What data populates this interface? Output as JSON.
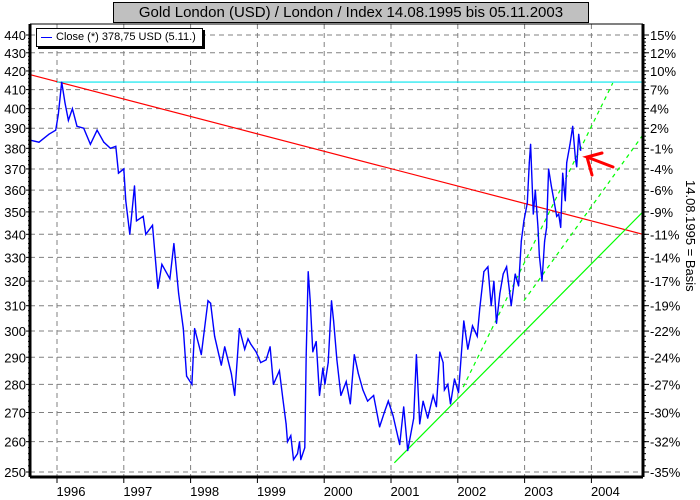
{
  "title": "Gold London (USD) / London / Index 14.08.1995 bis 05.11.2003",
  "legend": {
    "label": "Close (*) 378,75 USD (5.11.)"
  },
  "colors": {
    "series": "#0000ff",
    "resistance": "#ff0000",
    "support": "#00ff00",
    "reference": "#00e5ee",
    "grid": "#808080",
    "title_bg": "#c0c0c0"
  },
  "chart_data": {
    "type": "line",
    "title": "Gold London (USD) / London / Index 14.08.1995 bis 05.11.2003",
    "y_scale": "log",
    "ylim": [
      250,
      440
    ],
    "xlim": [
      1995.6,
      2004.77
    ],
    "grid": true,
    "legend_placement": "top-left",
    "y_ticks": [
      "440",
      "430",
      "420",
      "410",
      "400",
      "390",
      "380",
      "370",
      "360",
      "350",
      "340",
      "330",
      "320",
      "310",
      "300",
      "290",
      "280",
      "270",
      "260",
      "250"
    ],
    "y_tick_values": [
      440,
      430,
      420,
      410,
      400,
      390,
      380,
      370,
      360,
      350,
      340,
      330,
      320,
      310,
      300,
      290,
      280,
      270,
      260,
      250
    ],
    "y2_ticks": [
      "15%",
      "12%",
      "10%",
      "7%",
      "4%",
      "2%",
      "-1%",
      "-4%",
      "-6%",
      "-9%",
      "-11%",
      "-14%",
      "-17%",
      "-19%",
      "-22%",
      "-24%",
      "-27%",
      "-30%",
      "-32%",
      "-35%"
    ],
    "y2_label": "14.08.1995 = Basis",
    "x_ticks": [
      "1996",
      "1997",
      "1998",
      "1999",
      "2000",
      "2001",
      "2002",
      "2003",
      "2004"
    ],
    "x_tick_values": [
      1996,
      1997,
      1998,
      1999,
      2000,
      2001,
      2002,
      2003,
      2004
    ],
    "series": [
      {
        "name": "Close (*) 378,75 USD (5.11.)",
        "points": [
          [
            1995.6,
            384
          ],
          [
            1995.73,
            383
          ],
          [
            1995.88,
            387
          ],
          [
            1995.98,
            389
          ],
          [
            1996.02,
            397
          ],
          [
            1996.07,
            414
          ],
          [
            1996.12,
            403
          ],
          [
            1996.17,
            394
          ],
          [
            1996.23,
            400
          ],
          [
            1996.3,
            391
          ],
          [
            1996.4,
            390
          ],
          [
            1996.5,
            382
          ],
          [
            1996.6,
            389
          ],
          [
            1996.7,
            383
          ],
          [
            1996.8,
            380
          ],
          [
            1996.88,
            381
          ],
          [
            1996.92,
            368
          ],
          [
            1997.0,
            370
          ],
          [
            1997.03,
            355
          ],
          [
            1997.09,
            340
          ],
          [
            1997.16,
            362
          ],
          [
            1997.19,
            346
          ],
          [
            1997.29,
            348
          ],
          [
            1997.33,
            340
          ],
          [
            1997.43,
            344
          ],
          [
            1997.51,
            317
          ],
          [
            1997.57,
            327
          ],
          [
            1997.69,
            321
          ],
          [
            1997.75,
            336
          ],
          [
            1997.82,
            315
          ],
          [
            1997.89,
            301
          ],
          [
            1997.94,
            283
          ],
          [
            1998.02,
            280
          ],
          [
            1998.06,
            301
          ],
          [
            1998.16,
            291
          ],
          [
            1998.26,
            312
          ],
          [
            1998.3,
            311
          ],
          [
            1998.36,
            298
          ],
          [
            1998.46,
            287
          ],
          [
            1998.51,
            294
          ],
          [
            1998.61,
            284
          ],
          [
            1998.66,
            276
          ],
          [
            1998.73,
            301
          ],
          [
            1998.81,
            293
          ],
          [
            1998.86,
            297
          ],
          [
            1998.9,
            295
          ],
          [
            1998.98,
            292
          ],
          [
            1999.05,
            288
          ],
          [
            1999.13,
            289
          ],
          [
            1999.19,
            294
          ],
          [
            1999.24,
            280
          ],
          [
            1999.33,
            285
          ],
          [
            1999.38,
            275
          ],
          [
            1999.43,
            266
          ],
          [
            1999.45,
            260
          ],
          [
            1999.5,
            262
          ],
          [
            1999.54,
            254
          ],
          [
            1999.6,
            256
          ],
          [
            1999.63,
            260
          ],
          [
            1999.65,
            254
          ],
          [
            1999.71,
            258
          ],
          [
            1999.73,
            291
          ],
          [
            1999.76,
            324
          ],
          [
            1999.79,
            312
          ],
          [
            1999.83,
            292
          ],
          [
            1999.88,
            296
          ],
          [
            1999.93,
            276
          ],
          [
            1999.98,
            286
          ],
          [
            2000.01,
            280
          ],
          [
            2000.06,
            288
          ],
          [
            2000.11,
            312
          ],
          [
            2000.14,
            304
          ],
          [
            2000.19,
            289
          ],
          [
            2000.25,
            276
          ],
          [
            2000.33,
            281
          ],
          [
            2000.39,
            273
          ],
          [
            2000.45,
            291
          ],
          [
            2000.51,
            284
          ],
          [
            2000.58,
            278
          ],
          [
            2000.65,
            274
          ],
          [
            2000.74,
            276
          ],
          [
            2000.83,
            265
          ],
          [
            2000.9,
            270
          ],
          [
            2000.96,
            274
          ],
          [
            2001.03,
            269
          ],
          [
            2001.08,
            264
          ],
          [
            2001.13,
            259
          ],
          [
            2001.19,
            272
          ],
          [
            2001.25,
            257
          ],
          [
            2001.34,
            268
          ],
          [
            2001.38,
            291
          ],
          [
            2001.43,
            266
          ],
          [
            2001.48,
            274
          ],
          [
            2001.55,
            268
          ],
          [
            2001.63,
            276
          ],
          [
            2001.68,
            272
          ],
          [
            2001.73,
            292
          ],
          [
            2001.78,
            288
          ],
          [
            2001.8,
            278
          ],
          [
            2001.85,
            280
          ],
          [
            2001.89,
            273
          ],
          [
            2001.95,
            282
          ],
          [
            2002.01,
            277
          ],
          [
            2002.09,
            304
          ],
          [
            2002.15,
            293
          ],
          [
            2002.22,
            302
          ],
          [
            2002.29,
            298
          ],
          [
            2002.33,
            309
          ],
          [
            2002.39,
            324
          ],
          [
            2002.45,
            326
          ],
          [
            2002.5,
            310
          ],
          [
            2002.54,
            320
          ],
          [
            2002.58,
            303
          ],
          [
            2002.63,
            315
          ],
          [
            2002.68,
            323
          ],
          [
            2002.73,
            326
          ],
          [
            2002.8,
            310
          ],
          [
            2002.86,
            323
          ],
          [
            2002.91,
            318
          ],
          [
            2002.95,
            337
          ],
          [
            2002.99,
            346
          ],
          [
            2003.04,
            354
          ],
          [
            2003.07,
            373
          ],
          [
            2003.09,
            382
          ],
          [
            2003.13,
            349
          ],
          [
            2003.16,
            360
          ],
          [
            2003.2,
            343
          ],
          [
            2003.22,
            331
          ],
          [
            2003.26,
            320
          ],
          [
            2003.3,
            337
          ],
          [
            2003.33,
            343
          ],
          [
            2003.36,
            370
          ],
          [
            2003.4,
            362
          ],
          [
            2003.44,
            355
          ],
          [
            2003.48,
            348
          ],
          [
            2003.51,
            349
          ],
          [
            2003.54,
            343
          ],
          [
            2003.57,
            368
          ],
          [
            2003.61,
            355
          ],
          [
            2003.63,
            373
          ],
          [
            2003.68,
            382
          ],
          [
            2003.72,
            391
          ],
          [
            2003.76,
            375
          ],
          [
            2003.78,
            371
          ],
          [
            2003.81,
            387
          ],
          [
            2003.84,
            379
          ]
        ]
      }
    ],
    "trendlines": [
      {
        "name": "resistance-line",
        "style": "solid",
        "color": "#ff0000",
        "from": [
          1995.6,
          418
        ],
        "to": [
          2004.77,
          340
        ]
      },
      {
        "name": "support-line",
        "style": "solid",
        "color": "#00ff00",
        "from": [
          2001.05,
          253
        ],
        "to": [
          2004.77,
          350
        ]
      },
      {
        "name": "support-line-dashed-1",
        "style": "dashed",
        "color": "#00ff00",
        "from": [
          2002.08,
          279
        ],
        "to": [
          2004.32,
          413.5
        ]
      },
      {
        "name": "support-line-dashed-2",
        "style": "dashed",
        "color": "#00ff00",
        "from": [
          2002.99,
          312
        ],
        "to": [
          2004.77,
          386.6
        ]
      },
      {
        "name": "reference-line",
        "style": "solid",
        "color": "#00e5ee",
        "from": [
          1996.0,
          414
        ],
        "to": [
          2004.77,
          414
        ]
      }
    ]
  }
}
